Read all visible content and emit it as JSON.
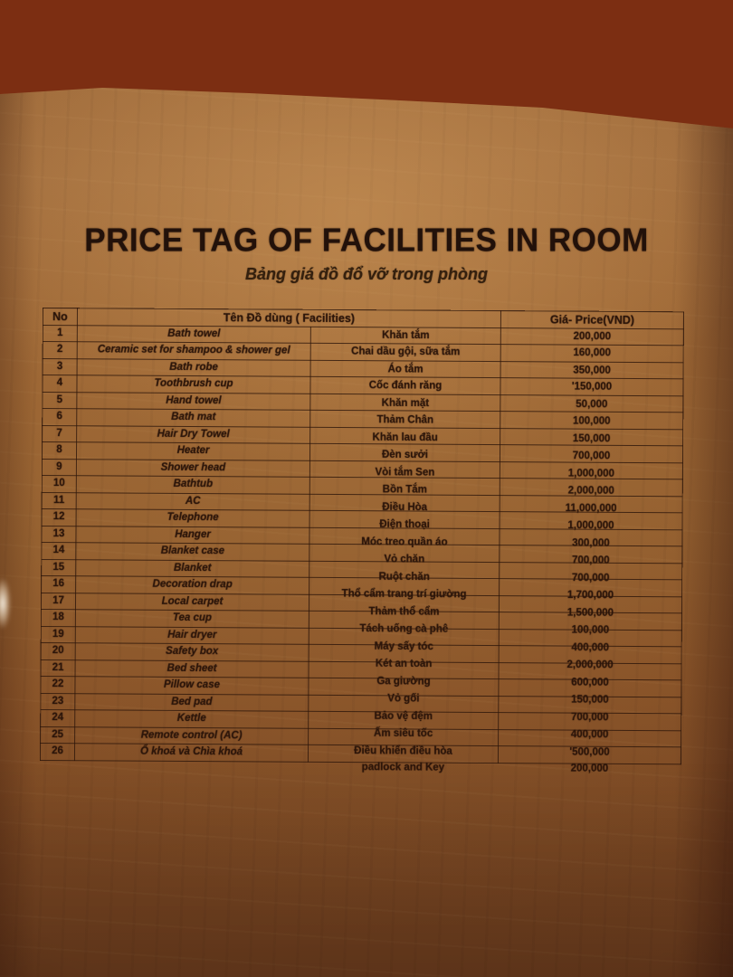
{
  "page": {
    "title": "PRICE TAG OF FACILITIES IN ROOM",
    "subtitle": "Bảng giá đồ đổ vỡ trong phòng"
  },
  "table": {
    "headers": {
      "no": "No",
      "facilities": "Tên Đồ dùng ( Facilities)",
      "price": "Giá- Price(VND)"
    },
    "rows": [
      {
        "no": "1",
        "en": "Bath towel",
        "vi": "Khăn tắm",
        "price": "200,000"
      },
      {
        "no": "2",
        "en": "Ceramic set for shampoo & shower gel",
        "vi": "Chai dầu gội, sữa tắm",
        "price": "160,000"
      },
      {
        "no": "3",
        "en": "Bath robe",
        "vi": "Áo tắm",
        "price": "350,000"
      },
      {
        "no": "4",
        "en": "Toothbrush cup",
        "vi": "Cốc đánh răng",
        "price": "'150,000"
      },
      {
        "no": "5",
        "en": "Hand towel",
        "vi": "Khăn mặt",
        "price": "50,000"
      },
      {
        "no": "6",
        "en": "Bath mat",
        "vi": "Thảm Chân",
        "price": "100,000"
      },
      {
        "no": "7",
        "en": "Hair Dry Towel",
        "vi": "Khăn lau đầu",
        "price": "150,000"
      },
      {
        "no": "8",
        "en": "Heater",
        "vi": "Đèn sưởi",
        "price": "700,000"
      },
      {
        "no": "9",
        "en": "Shower head",
        "vi": "Vòi tắm Sen",
        "price": "1,000,000"
      },
      {
        "no": "10",
        "en": "Bathtub",
        "vi": "Bồn Tắm",
        "price": "2,000,000"
      },
      {
        "no": "11",
        "en": "AC",
        "vi": "Điều Hòa",
        "price": "11,000,000"
      },
      {
        "no": "12",
        "en": "Telephone",
        "vi": "Điện thoại",
        "price": "1,000,000"
      },
      {
        "no": "13",
        "en": "Hanger",
        "vi": "Móc treo quần áo",
        "price": "300,000"
      },
      {
        "no": "14",
        "en": "Blanket case",
        "vi": "Vỏ chăn",
        "price": "700,000"
      },
      {
        "no": "15",
        "en": "Blanket",
        "vi": "Ruột chăn",
        "price": "700,000"
      },
      {
        "no": "16",
        "en": "Decoration drap",
        "vi": "Thổ cẩm trang trí giường",
        "price": "1,700,000"
      },
      {
        "no": "17",
        "en": "Local carpet",
        "vi": "Thảm thổ cẩm",
        "price": "1,500,000"
      },
      {
        "no": "18",
        "en": "Tea cup",
        "vi": "Tách uống cà phê",
        "price": "100,000"
      },
      {
        "no": "19",
        "en": "Hair dryer",
        "vi": "Máy sấy tóc",
        "price": "400,000"
      },
      {
        "no": "20",
        "en": "Safety box",
        "vi": "Két an toàn",
        "price": "2,000,000"
      },
      {
        "no": "21",
        "en": "Bed sheet",
        "vi": "Ga giường",
        "price": "600,000"
      },
      {
        "no": "22",
        "en": "Pillow case",
        "vi": "Vỏ gối",
        "price": "150,000"
      },
      {
        "no": "23",
        "en": "Bed pad",
        "vi": "Bảo vệ đệm",
        "price": "700,000"
      },
      {
        "no": "24",
        "en": "Kettle",
        "vi": "Ấm siêu tốc",
        "price": "400,000"
      },
      {
        "no": "25",
        "en": "Remote control (AC)",
        "vi": "Điều khiển điều hòa",
        "price": "'500,000"
      },
      {
        "no": "26",
        "en": "Ổ khoá và Chìa khoá",
        "vi": "padlock and Key",
        "price": "200,000"
      }
    ]
  },
  "colors": {
    "paper_light": "#a06c3c",
    "paper_dark": "#6e3f1f",
    "wood": "#b84e1c",
    "ink": "#2b150a"
  }
}
